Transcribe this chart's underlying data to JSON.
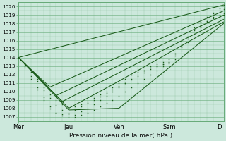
{
  "bg_color": "#cce8dc",
  "grid_color": "#66aa77",
  "line_color": "#1a5c1a",
  "dot_color": "#1a5c1a",
  "ylim": [
    1006.5,
    1020.5
  ],
  "yticks": [
    1007,
    1008,
    1009,
    1010,
    1011,
    1012,
    1013,
    1014,
    1015,
    1016,
    1017,
    1018,
    1019,
    1020
  ],
  "xlabel": "Pression niveau de la mer( hPa )",
  "day_labels": [
    "Mer",
    "Jeu",
    "Ven",
    "Sam",
    "D"
  ],
  "day_positions": [
    0,
    48,
    96,
    144,
    192
  ],
  "total_hours": 196,
  "curves": [
    {
      "x": [
        0,
        6,
        12,
        18,
        24,
        30,
        36,
        42,
        48,
        54,
        60,
        66,
        72,
        78,
        84,
        90,
        96,
        102,
        108,
        114,
        120,
        126,
        132,
        138,
        144,
        150,
        156,
        162,
        168,
        174,
        180,
        186,
        192,
        196
      ],
      "y": [
        1014.0,
        1013.2,
        1012.3,
        1011.2,
        1010.1,
        1009.2,
        1008.4,
        1007.8,
        1007.3,
        1007.0,
        1007.2,
        1007.5,
        1007.8,
        1008.2,
        1008.6,
        1009.0,
        1009.5,
        1010.0,
        1010.5,
        1011.0,
        1011.5,
        1012.0,
        1012.5,
        1013.0,
        1013.3,
        1013.8,
        1014.8,
        1015.8,
        1016.8,
        1017.5,
        1018.3,
        1019.2,
        1019.8,
        1020.2
      ],
      "style": "dotted"
    },
    {
      "x": [
        0,
        6,
        12,
        18,
        24,
        30,
        36,
        42,
        48,
        54,
        60,
        66,
        72,
        78,
        84,
        90,
        96,
        102,
        108,
        114,
        120,
        126,
        132,
        138,
        144,
        150,
        156,
        162,
        168,
        174,
        180,
        186,
        192,
        196
      ],
      "y": [
        1014.0,
        1013.0,
        1011.8,
        1010.5,
        1009.3,
        1008.2,
        1007.5,
        1007.1,
        1007.0,
        1007.2,
        1007.6,
        1008.0,
        1008.5,
        1009.0,
        1009.5,
        1010.0,
        1010.5,
        1011.0,
        1011.5,
        1012.0,
        1012.5,
        1013.0,
        1013.2,
        1013.5,
        1013.8,
        1014.5,
        1015.5,
        1016.5,
        1017.5,
        1018.2,
        1018.8,
        1019.3,
        1019.5,
        1019.7
      ],
      "style": "dotted"
    },
    {
      "x": [
        0,
        6,
        12,
        18,
        24,
        30,
        36,
        42,
        48,
        54,
        60,
        66,
        72,
        78,
        84,
        90,
        96,
        102,
        108,
        114,
        120,
        126,
        132,
        138,
        144,
        150,
        156,
        162,
        168,
        174,
        180,
        186,
        192,
        196
      ],
      "y": [
        1014.0,
        1012.8,
        1011.5,
        1010.2,
        1009.0,
        1008.0,
        1007.5,
        1007.3,
        1007.5,
        1007.8,
        1008.2,
        1008.6,
        1009.0,
        1009.4,
        1009.8,
        1010.2,
        1010.6,
        1011.0,
        1011.4,
        1011.8,
        1012.2,
        1012.6,
        1013.0,
        1013.2,
        1013.5,
        1014.2,
        1015.2,
        1016.2,
        1017.2,
        1017.8,
        1018.3,
        1018.8,
        1019.0,
        1019.2
      ],
      "style": "dotted"
    },
    {
      "x": [
        0,
        6,
        12,
        18,
        24,
        30,
        36,
        42,
        48,
        54,
        60,
        66,
        72,
        78,
        84,
        90,
        96,
        102,
        108,
        114,
        120,
        126,
        132,
        138,
        144,
        150,
        156,
        162,
        168,
        174,
        180,
        186,
        192,
        196
      ],
      "y": [
        1014.0,
        1013.3,
        1012.5,
        1011.5,
        1010.5,
        1009.6,
        1009.0,
        1008.5,
        1008.0,
        1008.2,
        1008.5,
        1008.8,
        1009.2,
        1009.6,
        1010.0,
        1010.5,
        1011.0,
        1011.5,
        1012.0,
        1012.3,
        1012.5,
        1012.8,
        1013.0,
        1013.2,
        1013.5,
        1014.5,
        1015.5,
        1016.5,
        1017.3,
        1017.8,
        1018.2,
        1018.6,
        1018.8,
        1019.0
      ],
      "style": "dotted"
    },
    {
      "x": [
        0,
        196
      ],
      "y": [
        1014.0,
        1020.2
      ],
      "style": "line_thin"
    },
    {
      "x": [
        0,
        30,
        196
      ],
      "y": [
        1014.0,
        1010.5,
        1019.5
      ],
      "style": "line_thin"
    },
    {
      "x": [
        0,
        36,
        196
      ],
      "y": [
        1014.0,
        1009.5,
        1019.0
      ],
      "style": "line_thin"
    },
    {
      "x": [
        0,
        42,
        196
      ],
      "y": [
        1014.0,
        1008.8,
        1018.5
      ],
      "style": "line_thin"
    },
    {
      "x": [
        0,
        48,
        96,
        196
      ],
      "y": [
        1014.0,
        1008.0,
        1011.2,
        1018.2
      ],
      "style": "line_thin"
    },
    {
      "x": [
        0,
        48,
        96,
        196
      ],
      "y": [
        1014.0,
        1007.8,
        1008.0,
        1018.0
      ],
      "style": "line_thin"
    }
  ],
  "figsize": [
    3.2,
    2.0
  ],
  "dpi": 100
}
